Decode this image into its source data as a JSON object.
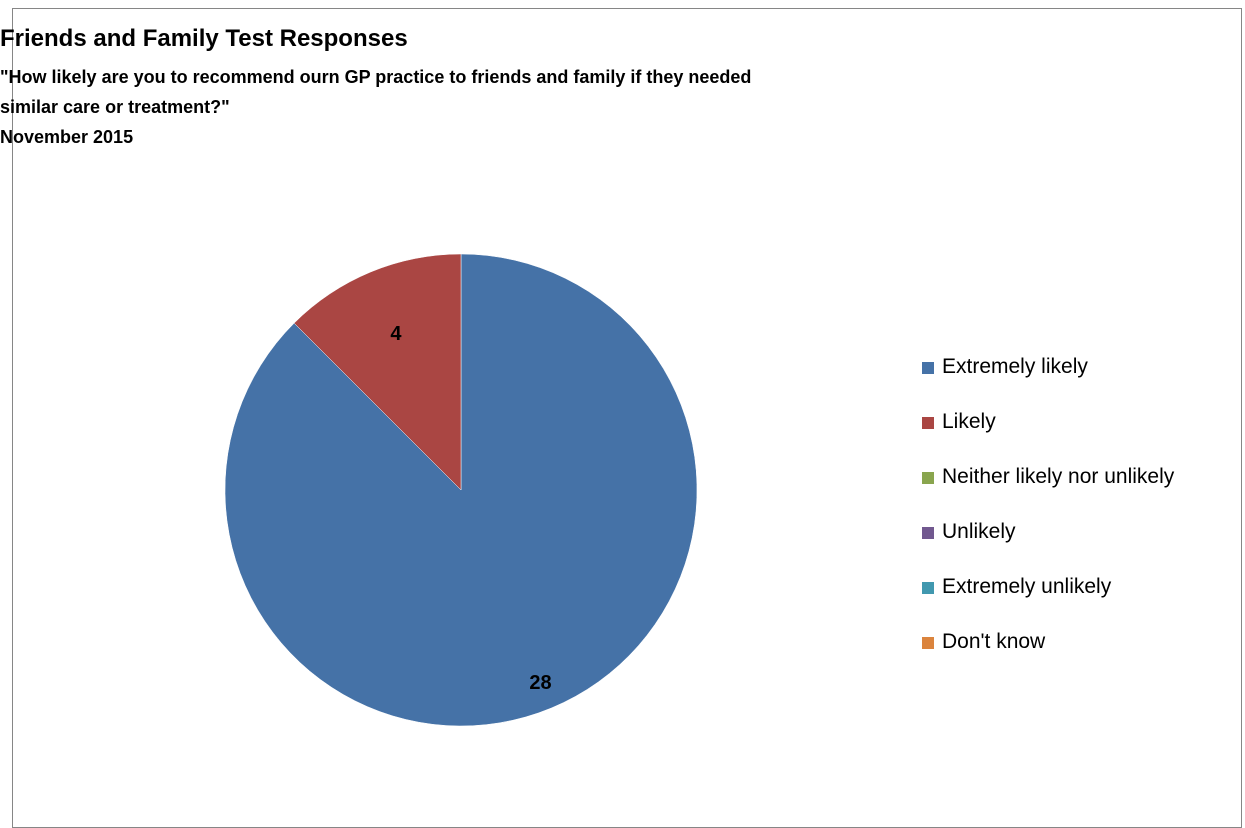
{
  "chart_data": {
    "type": "pie",
    "title": "Friends and Family Test Responses",
    "subtitle_line1": "\"How likely are you to recommend ourn GP practice to friends and family if they needed",
    "subtitle_line2": "similar care or treatment?\"",
    "subtitle_line3": "November 2015",
    "categories": [
      "Extremely likely",
      "Likely",
      "Neither likely nor unlikely",
      "Unlikely",
      "Extremely unlikely",
      "Don't know"
    ],
    "values": [
      28,
      4,
      0,
      0,
      0,
      0
    ],
    "data_labels": [
      "28",
      "4",
      "",
      "",
      "",
      ""
    ],
    "colors": [
      "#4572A7",
      "#AA4643",
      "#89A54E",
      "#71588F",
      "#4198AF",
      "#DB843D"
    ],
    "legend_position": "right"
  }
}
